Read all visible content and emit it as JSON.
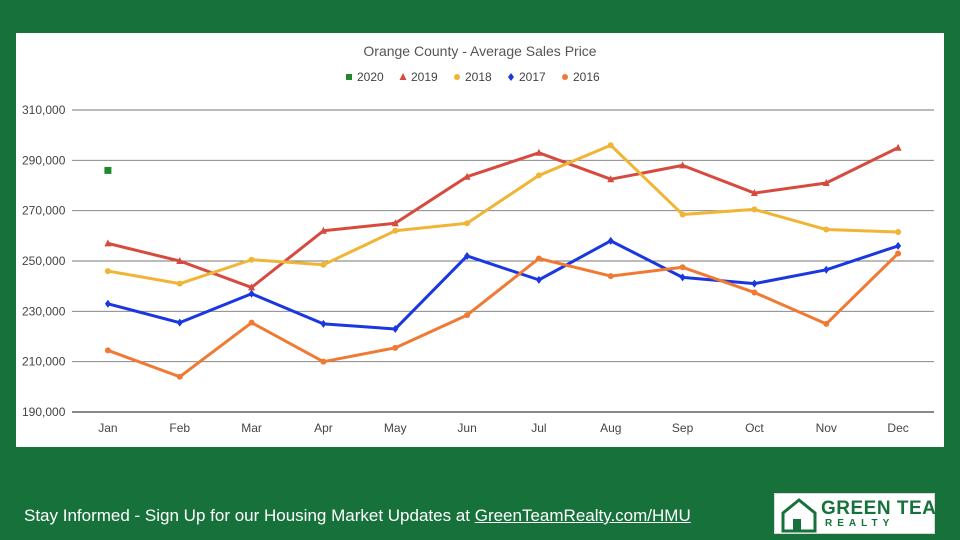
{
  "chart_data": {
    "type": "line",
    "title": "Orange County - Average Sales Price",
    "categories": [
      "Jan",
      "Feb",
      "Mar",
      "Apr",
      "May",
      "Jun",
      "Jul",
      "Aug",
      "Sep",
      "Oct",
      "Nov",
      "Dec"
    ],
    "ylim": [
      190000,
      310000
    ],
    "yticks": [
      "190,000",
      "210,000",
      "230,000",
      "250,000",
      "270,000",
      "290,000",
      "310,000"
    ],
    "grid": true,
    "legend_position": "top",
    "series": [
      {
        "name": "2020",
        "color": "#1e8a2c",
        "marker": "square",
        "values": [
          286000,
          null,
          null,
          null,
          null,
          null,
          null,
          null,
          null,
          null,
          null,
          null
        ]
      },
      {
        "name": "2019",
        "color": "#d64b3f",
        "marker": "triangle",
        "values": [
          257000,
          250000,
          239500,
          262000,
          265000,
          283500,
          293000,
          282500,
          288000,
          277000,
          281000,
          295000
        ]
      },
      {
        "name": "2018",
        "color": "#f0b534",
        "marker": "circle",
        "values": [
          246000,
          241000,
          250500,
          248500,
          262000,
          265000,
          284000,
          296000,
          268500,
          270500,
          262500,
          261500
        ]
      },
      {
        "name": "2017",
        "color": "#1a37e0",
        "marker": "diamond",
        "values": [
          233000,
          225500,
          237000,
          225000,
          223000,
          252000,
          242500,
          258000,
          243500,
          241000,
          246500,
          256000
        ]
      },
      {
        "name": "2016",
        "color": "#f07a34",
        "marker": "circle",
        "values": [
          214500,
          204000,
          225500,
          210000,
          215500,
          228500,
          251000,
          244000,
          247500,
          237500,
          225000,
          253000
        ]
      }
    ]
  },
  "footer": {
    "text": "Stay Informed - Sign Up for our Housing Market Updates at ",
    "link": "GreenTeamRealty.com/HMU"
  },
  "logo": {
    "line1": "GREEN TEAM",
    "line2": "REALTY",
    "color": "#17713b"
  }
}
